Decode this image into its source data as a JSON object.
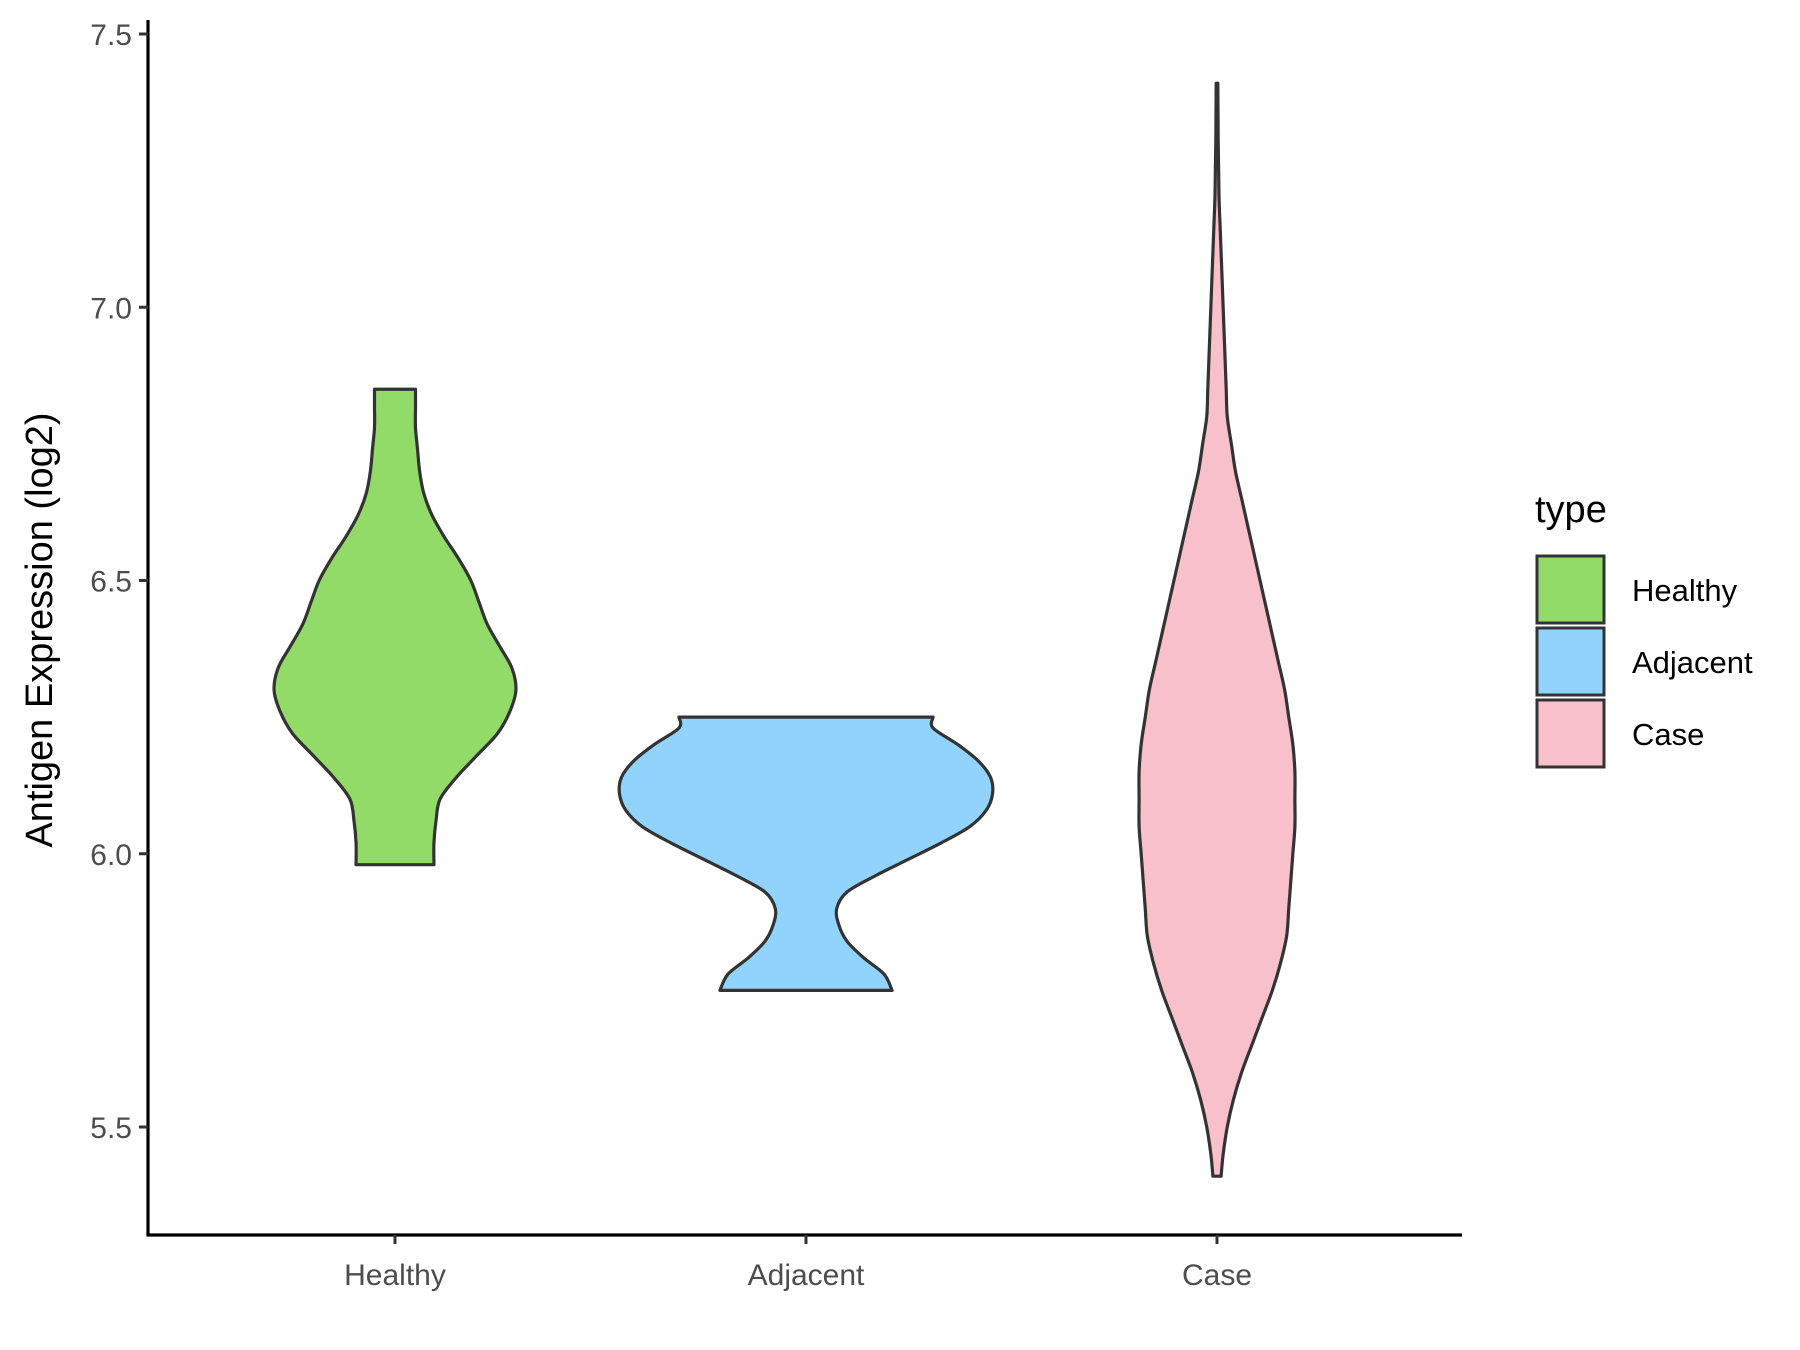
{
  "chart_data": {
    "type": "violin",
    "ylabel": "Antigen Expression (log2)",
    "xlabel": "",
    "ylim": [
      5.3,
      7.52
    ],
    "yticks": [
      "5.5",
      "6.0",
      "6.5",
      "7.0",
      "7.5"
    ],
    "categories": [
      "Healthy",
      "Adjacent",
      "Case"
    ],
    "legend": {
      "title": "type",
      "position": "right"
    },
    "grid": false,
    "series": [
      {
        "name": "Healthy",
        "color": "#93DB69",
        "min": 5.98,
        "max": 6.85,
        "profile": [
          [
            5.98,
            0.19
          ],
          [
            6.02,
            0.19
          ],
          [
            6.06,
            0.2
          ],
          [
            6.1,
            0.22
          ],
          [
            6.14,
            0.3
          ],
          [
            6.18,
            0.4
          ],
          [
            6.22,
            0.5
          ],
          [
            6.26,
            0.56
          ],
          [
            6.3,
            0.59
          ],
          [
            6.34,
            0.57
          ],
          [
            6.38,
            0.51
          ],
          [
            6.42,
            0.45
          ],
          [
            6.46,
            0.41
          ],
          [
            6.5,
            0.37
          ],
          [
            6.54,
            0.31
          ],
          [
            6.58,
            0.24
          ],
          [
            6.62,
            0.18
          ],
          [
            6.66,
            0.14
          ],
          [
            6.7,
            0.12
          ],
          [
            6.74,
            0.11
          ],
          [
            6.78,
            0.1
          ],
          [
            6.82,
            0.1
          ],
          [
            6.85,
            0.1
          ]
        ]
      },
      {
        "name": "Adjacent",
        "color": "#92D3FE",
        "min": 5.75,
        "max": 6.25,
        "profile": [
          [
            5.75,
            0.42
          ],
          [
            5.78,
            0.38
          ],
          [
            5.81,
            0.28
          ],
          [
            5.84,
            0.2
          ],
          [
            5.87,
            0.16
          ],
          [
            5.9,
            0.15
          ],
          [
            5.93,
            0.2
          ],
          [
            5.96,
            0.34
          ],
          [
            5.99,
            0.5
          ],
          [
            6.02,
            0.66
          ],
          [
            6.05,
            0.8
          ],
          [
            6.08,
            0.88
          ],
          [
            6.11,
            0.91
          ],
          [
            6.14,
            0.9
          ],
          [
            6.17,
            0.84
          ],
          [
            6.2,
            0.74
          ],
          [
            6.23,
            0.62
          ],
          [
            6.25,
            0.62
          ]
        ]
      },
      {
        "name": "Case",
        "color": "#F7C0CB",
        "min": 5.41,
        "max": 7.41,
        "profile": [
          [
            5.41,
            0.02
          ],
          [
            5.45,
            0.03
          ],
          [
            5.5,
            0.05
          ],
          [
            5.55,
            0.08
          ],
          [
            5.6,
            0.12
          ],
          [
            5.65,
            0.17
          ],
          [
            5.7,
            0.22
          ],
          [
            5.75,
            0.27
          ],
          [
            5.8,
            0.31
          ],
          [
            5.85,
            0.34
          ],
          [
            5.9,
            0.35
          ],
          [
            5.95,
            0.36
          ],
          [
            6.0,
            0.37
          ],
          [
            6.05,
            0.38
          ],
          [
            6.1,
            0.38
          ],
          [
            6.15,
            0.38
          ],
          [
            6.2,
            0.37
          ],
          [
            6.25,
            0.35
          ],
          [
            6.3,
            0.33
          ],
          [
            6.35,
            0.3
          ],
          [
            6.4,
            0.27
          ],
          [
            6.45,
            0.24
          ],
          [
            6.5,
            0.21
          ],
          [
            6.55,
            0.18
          ],
          [
            6.6,
            0.15
          ],
          [
            6.65,
            0.12
          ],
          [
            6.7,
            0.09
          ],
          [
            6.75,
            0.07
          ],
          [
            6.8,
            0.05
          ],
          [
            6.85,
            0.045
          ],
          [
            6.9,
            0.04
          ],
          [
            6.95,
            0.035
          ],
          [
            7.0,
            0.03
          ],
          [
            7.05,
            0.025
          ],
          [
            7.1,
            0.02
          ],
          [
            7.15,
            0.015
          ],
          [
            7.2,
            0.01
          ],
          [
            7.25,
            0.008
          ],
          [
            7.3,
            0.006
          ],
          [
            7.35,
            0.005
          ],
          [
            7.41,
            0.004
          ]
        ]
      }
    ]
  }
}
